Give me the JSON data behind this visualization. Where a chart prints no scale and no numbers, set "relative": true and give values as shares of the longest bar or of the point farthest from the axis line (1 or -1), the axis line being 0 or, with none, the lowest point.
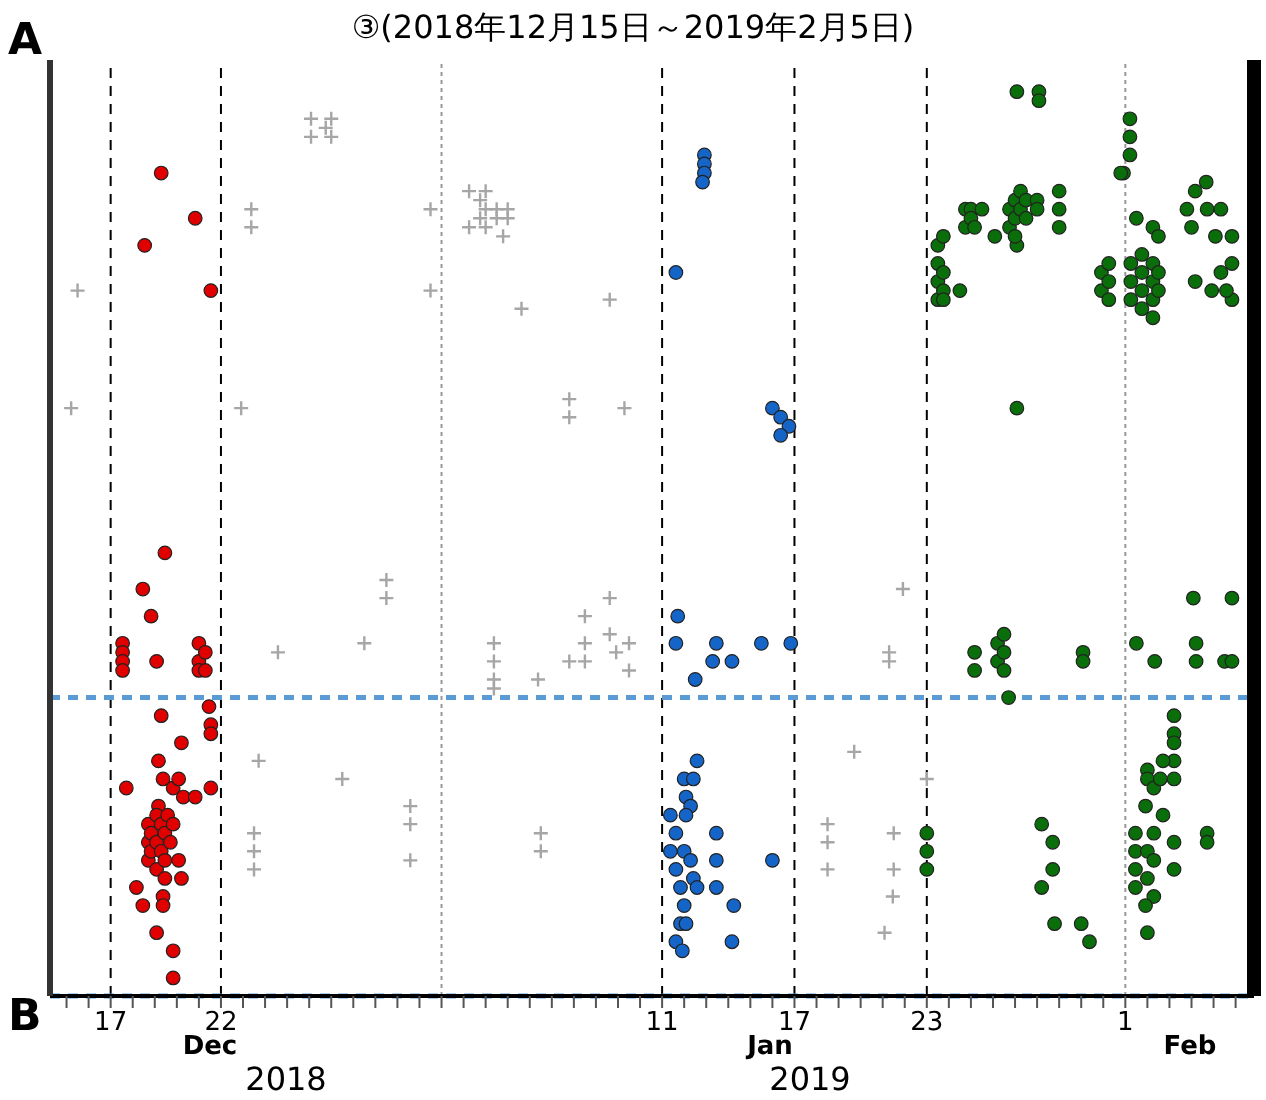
{
  "chart_data": {
    "type": "scatter",
    "title": "③(2018年12月15日～2019年2月5日)",
    "relative": true,
    "marker": "circle",
    "xlim": [
      "2018-12-14T06:00",
      "2019-02-06T20:00"
    ],
    "xticks": [
      {
        "value": "2018-12-15",
        "label": null
      },
      {
        "value": "2018-12-16",
        "label": null
      },
      {
        "value": "2018-12-17",
        "label": "17"
      },
      {
        "value": "2018-12-18",
        "label": null
      },
      {
        "value": "2018-12-19",
        "label": null
      },
      {
        "value": "2018-12-20",
        "label": null
      },
      {
        "value": "2018-12-21",
        "label": null
      },
      {
        "value": "2018-12-22",
        "label": "22"
      },
      {
        "value": "2018-12-23",
        "label": null
      },
      {
        "value": "2018-12-24",
        "label": null
      },
      {
        "value": "2018-12-25",
        "label": null
      },
      {
        "value": "2018-12-26",
        "label": null
      },
      {
        "value": "2018-12-27",
        "label": null
      },
      {
        "value": "2018-12-28",
        "label": null
      },
      {
        "value": "2018-12-29",
        "label": null
      },
      {
        "value": "2018-12-30",
        "label": null
      },
      {
        "value": "2018-12-31",
        "label": null
      },
      {
        "value": "2019-01-01",
        "label": null
      },
      {
        "value": "2019-01-02",
        "label": null
      },
      {
        "value": "2019-01-03",
        "label": null
      },
      {
        "value": "2019-01-04",
        "label": null
      },
      {
        "value": "2019-01-05",
        "label": null
      },
      {
        "value": "2019-01-06",
        "label": null
      },
      {
        "value": "2019-01-07",
        "label": null
      },
      {
        "value": "2019-01-08",
        "label": null
      },
      {
        "value": "2019-01-09",
        "label": null
      },
      {
        "value": "2019-01-10",
        "label": null
      },
      {
        "value": "2019-01-11",
        "label": "11"
      },
      {
        "value": "2019-01-12",
        "label": null
      },
      {
        "value": "2019-01-13",
        "label": null
      },
      {
        "value": "2019-01-14",
        "label": null
      },
      {
        "value": "2019-01-15",
        "label": null
      },
      {
        "value": "2019-01-16",
        "label": null
      },
      {
        "value": "2019-01-17",
        "label": "17"
      },
      {
        "value": "2019-01-18",
        "label": null
      },
      {
        "value": "2019-01-19",
        "label": null
      },
      {
        "value": "2019-01-20",
        "label": null
      },
      {
        "value": "2019-01-21",
        "label": null
      },
      {
        "value": "2019-01-22",
        "label": null
      },
      {
        "value": "2019-01-23",
        "label": "23"
      },
      {
        "value": "2019-01-24",
        "label": null
      },
      {
        "value": "2019-01-25",
        "label": null
      },
      {
        "value": "2019-01-26",
        "label": null
      },
      {
        "value": "2019-01-27",
        "label": null
      },
      {
        "value": "2019-01-28",
        "label": null
      },
      {
        "value": "2019-01-29",
        "label": null
      },
      {
        "value": "2019-01-30",
        "label": null
      },
      {
        "value": "2019-01-31",
        "label": null
      },
      {
        "value": "2019-02-01",
        "label": "1"
      },
      {
        "value": "2019-02-02",
        "label": null
      },
      {
        "value": "2019-02-03",
        "label": null
      },
      {
        "value": "2019-02-04",
        "label": null
      },
      {
        "value": "2019-02-05",
        "label": null
      },
      {
        "value": "2019-02-06",
        "label": null
      }
    ],
    "annotations": [
      "A",
      "B",
      "Dec",
      "Jan",
      "Feb",
      "2018",
      "2019"
    ],
    "ref_lines": [
      {
        "axis": "x",
        "value": "2018-12-17",
        "color": "#000000",
        "line_style": "dashed"
      },
      {
        "axis": "x",
        "value": "2018-12-22",
        "color": "#000000",
        "line_style": "dashed"
      },
      {
        "axis": "x",
        "value": "2019-01-01",
        "color": "#999999",
        "line_style": "dotted"
      },
      {
        "axis": "x",
        "value": "2019-01-11",
        "color": "#000000",
        "line_style": "dashed"
      },
      {
        "axis": "x",
        "value": "2019-01-17",
        "color": "#000000",
        "line_style": "dashed"
      },
      {
        "axis": "x",
        "value": "2019-01-23",
        "color": "#000000",
        "line_style": "dashed"
      },
      {
        "axis": "x",
        "value": "2019-02-01",
        "color": "#999999",
        "line_style": "dotted"
      },
      {
        "axis": "y",
        "value": 0.33,
        "color": "#5b9bd5",
        "line_style": "dashed"
      },
      {
        "axis": "y",
        "value": 0,
        "color": "#5b9bd5",
        "line_style": "dashed"
      }
    ],
    "series": [
      {
        "color": "#a6a6a6",
        "marker": "cross",
        "x": [
          "2018-12-15T12:00",
          "2018-12-15T05:00",
          "2018-12-22T22:00",
          "2018-12-23T09:00",
          "2018-12-23T09:00",
          "2018-12-26T02:00",
          "2018-12-26T02:00",
          "2018-12-26T18:00",
          "2018-12-27T00:00",
          "2018-12-27T00:00",
          "2018-12-31T12:00",
          "2018-12-31T12:00",
          "2019-01-02T06:00",
          "2019-01-02T06:00",
          "2019-01-02T18:00",
          "2019-01-02T18:00",
          "2019-01-03T00:00",
          "2019-01-03T00:00",
          "2019-01-03T00:00",
          "2019-01-03T12:00",
          "2019-01-03T12:00",
          "2019-01-04T00:00",
          "2019-01-04T00:00",
          "2019-01-03T19:00",
          "2019-01-04T15:00",
          "2019-01-08T15:00",
          "2019-01-06T19:00",
          "2019-01-06T19:00",
          "2019-01-09T07:00",
          "2018-12-29T12:00",
          "2018-12-29T12:00",
          "2018-12-24T14:00",
          "2018-12-28T12:00",
          "2019-01-03T09:00",
          "2019-01-03T09:00",
          "2019-01-03T09:00",
          "2019-01-03T09:00",
          "2019-01-05T09:00",
          "2019-01-06T19:00",
          "2019-01-07T12:00",
          "2019-01-07T12:00",
          "2019-01-08T15:00",
          "2019-01-07T12:00",
          "2019-01-08T15:00",
          "2019-01-09T12:00",
          "2019-01-09T12:00",
          "2019-01-08T22:00",
          "2018-12-23T17:00",
          "2018-12-27T12:00",
          "2018-12-23T12:00",
          "2018-12-23T12:00",
          "2018-12-23T12:00",
          "2018-12-30T14:00",
          "2018-12-30T14:00",
          "2018-12-30T14:00",
          "2019-01-05T12:00",
          "2019-01-05T12:00",
          "2019-01-21T22:00",
          "2019-01-21T07:00",
          "2019-01-21T07:00",
          "2019-01-19T17:00",
          "2019-01-23T00:00",
          "2019-01-18T12:00",
          "2019-01-18T12:00",
          "2019-01-18T12:00",
          "2019-01-21T12:00",
          "2019-01-21T12:00",
          "2019-01-21T11:00",
          "2019-01-21T02:00"
        ],
        "values": [
          0.78,
          0.65,
          0.65,
          0.87,
          0.85,
          0.97,
          0.95,
          0.96,
          0.97,
          0.95,
          0.87,
          0.78,
          0.89,
          0.85,
          0.88,
          0.86,
          0.89,
          0.87,
          0.85,
          0.87,
          0.86,
          0.87,
          0.86,
          0.84,
          0.76,
          0.77,
          0.66,
          0.64,
          0.65,
          0.46,
          0.44,
          0.38,
          0.39,
          0.39,
          0.37,
          0.35,
          0.34,
          0.35,
          0.37,
          0.39,
          0.37,
          0.44,
          0.42,
          0.4,
          0.39,
          0.36,
          0.38,
          0.26,
          0.24,
          0.18,
          0.16,
          0.14,
          0.21,
          0.19,
          0.15,
          0.18,
          0.16,
          0.45,
          0.38,
          0.37,
          0.27,
          0.24,
          0.19,
          0.17,
          0.14,
          0.18,
          0.14,
          0.11,
          0.07
        ]
      },
      {
        "color": "#e00000",
        "x": [
          "2018-12-19T07:00",
          "2018-12-20T20:00",
          "2018-12-18T13:00",
          "2018-12-21T13:00",
          "2018-12-19T11:00",
          "2018-12-18T11:00",
          "2018-12-18T20:00",
          "2018-12-19T02:00",
          "2018-12-17T13:00",
          "2018-12-17T13:00",
          "2018-12-17T13:00",
          "2018-12-17T13:00",
          "2018-12-21T00:00",
          "2018-12-21T00:00",
          "2018-12-21T00:00",
          "2018-12-21T07:00",
          "2018-12-21T07:00",
          "2018-12-19T07:00",
          "2018-12-21T11:00",
          "2018-12-21T13:00",
          "2018-12-21T13:00",
          "2018-12-20T05:00",
          "2018-12-19T04:00",
          "2018-12-17T17:00",
          "2018-12-19T09:00",
          "2018-12-19T20:00",
          "2018-12-20T02:00",
          "2018-12-20T07:00",
          "2018-12-20T20:00",
          "2018-12-21T13:00",
          "2018-12-19T04:00",
          "2018-12-18T17:00",
          "2018-12-18T17:00",
          "2018-12-18T17:00",
          "2018-12-18T20:00",
          "2018-12-18T20:00",
          "2018-12-19T02:00",
          "2018-12-19T02:00",
          "2018-12-19T02:00",
          "2018-12-19T07:00",
          "2018-12-19T07:00",
          "2018-12-19T11:00",
          "2018-12-19T11:00",
          "2018-12-19T11:00",
          "2018-12-19T14:00",
          "2018-12-19T17:00",
          "2018-12-19T20:00",
          "2018-12-20T02:00",
          "2018-12-20T05:00",
          "2018-12-18T04:00",
          "2018-12-18T11:00",
          "2018-12-19T09:00",
          "2018-12-19T09:00",
          "2018-12-19T02:00",
          "2018-12-19T20:00",
          "2018-12-19T20:00"
        ],
        "values": [
          0.91,
          0.86,
          0.83,
          0.78,
          0.49,
          0.45,
          0.42,
          0.37,
          0.39,
          0.38,
          0.37,
          0.36,
          0.39,
          0.37,
          0.36,
          0.38,
          0.36,
          0.31,
          0.32,
          0.3,
          0.29,
          0.28,
          0.26,
          0.23,
          0.24,
          0.23,
          0.24,
          0.22,
          0.22,
          0.23,
          0.21,
          0.19,
          0.17,
          0.15,
          0.18,
          0.16,
          0.2,
          0.17,
          0.14,
          0.19,
          0.16,
          0.18,
          0.15,
          0.13,
          0.2,
          0.17,
          0.19,
          0.15,
          0.13,
          0.12,
          0.1,
          0.11,
          0.1,
          0.07,
          0.05,
          0.02
        ]
      },
      {
        "color": "#1565c8",
        "x": [
          "2019-01-12T22:00",
          "2019-01-12T22:00",
          "2019-01-12T22:00",
          "2019-01-12T20:00",
          "2019-01-11T15:00",
          "2019-01-16T00:00",
          "2019-01-16T09:00",
          "2019-01-16T18:00",
          "2019-01-16T09:00",
          "2019-01-11T17:00",
          "2019-01-11T15:00",
          "2019-01-12T12:00",
          "2019-01-13T07:00",
          "2019-01-13T11:00",
          "2019-01-14T04:00",
          "2019-01-15T12:00",
          "2019-01-16T20:00",
          "2019-01-12T14:00",
          "2019-01-12T00:00",
          "2019-01-12T10:00",
          "2019-01-12T02:00",
          "2019-01-12T07:00",
          "2019-01-11T09:00",
          "2019-01-12T02:00",
          "2019-01-11T15:00",
          "2019-01-12T00:00",
          "2019-01-11T09:00",
          "2019-01-12T07:00",
          "2019-01-11T15:00",
          "2019-01-12T10:00",
          "2019-01-11T20:00",
          "2019-01-12T14:00",
          "2019-01-12T00:00",
          "2019-01-11T20:00",
          "2019-01-12T02:00",
          "2019-01-11T15:00",
          "2019-01-11T22:00",
          "2019-01-13T11:00",
          "2019-01-13T11:00",
          "2019-01-13T11:00",
          "2019-01-14T06:00",
          "2019-01-14T04:00",
          "2019-01-16T00:00"
        ],
        "values": [
          0.93,
          0.92,
          0.91,
          0.9,
          0.8,
          0.65,
          0.64,
          0.63,
          0.62,
          0.42,
          0.39,
          0.35,
          0.37,
          0.39,
          0.37,
          0.39,
          0.39,
          0.26,
          0.24,
          0.24,
          0.22,
          0.21,
          0.2,
          0.2,
          0.18,
          0.16,
          0.16,
          0.15,
          0.14,
          0.13,
          0.12,
          0.12,
          0.1,
          0.08,
          0.08,
          0.06,
          0.05,
          0.18,
          0.15,
          0.12,
          0.1,
          0.06,
          0.15
        ]
      },
      {
        "color": "#0a6e0a",
        "x": [
          "2019-01-27T02:00",
          "2019-01-28T02:00",
          "2019-01-28T02:00",
          "2019-02-01T05:00",
          "2019-02-01T05:00",
          "2019-02-01T05:00",
          "2019-01-31T22:00",
          "2019-01-31T19:00",
          "2019-01-23T12:00",
          "2019-01-23T12:00",
          "2019-01-23T12:00",
          "2019-01-23T12:00",
          "2019-01-23T18:00",
          "2019-01-23T18:00",
          "2019-01-23T18:00",
          "2019-01-23T18:00",
          "2019-01-24T12:00",
          "2019-01-24T18:00",
          "2019-01-24T18:00",
          "2019-01-25T00:00",
          "2019-01-25T00:00",
          "2019-01-25T12:00",
          "2019-01-25T04:00",
          "2019-01-26T02:00",
          "2019-01-27T02:00",
          "2019-01-26T18:00",
          "2019-01-26T18:00",
          "2019-01-27T00:00",
          "2019-01-27T00:00",
          "2019-01-27T00:00",
          "2019-01-27T06:00",
          "2019-01-27T06:00",
          "2019-01-27T12:00",
          "2019-01-27T12:00",
          "2019-01-28T00:00",
          "2019-01-28T00:00",
          "2019-01-29T00:00",
          "2019-01-29T00:00",
          "2019-01-29T00:00",
          "2019-02-01T12:00",
          "2019-02-02T06:00",
          "2019-02-02T12:00",
          "2019-01-30T22:00",
          "2019-01-30T22:00",
          "2019-01-31T06:00",
          "2019-01-31T06:00",
          "2019-01-31T06:00",
          "2019-02-01T06:00",
          "2019-02-01T06:00",
          "2019-02-01T06:00",
          "2019-02-01T18:00",
          "2019-02-01T18:00",
          "2019-02-01T18:00",
          "2019-02-01T18:00",
          "2019-02-02T06:00",
          "2019-02-02T06:00",
          "2019-02-02T06:00",
          "2019-02-02T06:00",
          "2019-02-02T12:00",
          "2019-02-02T12:00",
          "2019-02-04T16:00",
          "2019-02-04T04:00",
          "2019-02-03T19:00",
          "2019-02-04T17:00",
          "2019-02-05T08:00",
          "2019-02-05T02:00",
          "2019-02-05T20:00",
          "2019-02-05T20:00",
          "2019-02-05T08:00",
          "2019-02-04T22:00",
          "2019-02-05T20:00",
          "2019-02-04T04:00",
          "2019-02-04T00:00",
          "2019-02-05T14:00",
          "2019-01-27T02:00",
          "2019-01-25T04:00",
          "2019-01-25T04:00",
          "2019-01-26T05:00",
          "2019-01-26T05:00",
          "2019-01-26T12:00",
          "2019-01-26T12:00",
          "2019-01-26T12:00",
          "2019-01-26T17:00",
          "2019-01-30T02:00",
          "2019-01-30T02:00",
          "2019-02-01T12:00",
          "2019-02-02T08:00",
          "2019-02-04T02:00",
          "2019-02-05T20:00",
          "2019-02-04T05:00",
          "2019-02-04T05:00",
          "2019-02-05T12:00",
          "2019-02-05T20:00",
          "2019-01-23T00:00",
          "2019-01-23T00:00",
          "2019-01-23T00:00",
          "2019-01-28T05:00",
          "2019-01-28T17:00",
          "2019-01-28T17:00",
          "2019-01-28T05:00",
          "2019-01-28T19:00",
          "2019-01-30T00:00",
          "2019-01-30T09:00",
          "2019-02-03T05:00",
          "2019-02-03T05:00",
          "2019-02-03T05:00",
          "2019-02-03T05:00",
          "2019-02-03T05:00",
          "2019-02-02T17:00",
          "2019-02-02T00:00",
          "2019-02-02T00:00",
          "2019-02-02T07:00",
          "2019-02-02T14:00",
          "2019-02-01T22:00",
          "2019-02-02T17:00",
          "2019-02-01T11:00",
          "2019-02-02T07:00",
          "2019-02-03T05:00",
          "2019-02-03T05:00",
          "2019-02-01T11:00",
          "2019-02-01T11:00",
          "2019-02-01T11:00",
          "2019-02-02T00:00",
          "2019-02-02T00:00",
          "2019-02-02T07:00",
          "2019-02-02T07:00",
          "2019-02-01T22:00",
          "2019-02-02T00:00",
          "2019-02-04T17:00",
          "2019-02-04T17:00"
        ],
        "values": [
          1.0,
          1.0,
          0.99,
          0.97,
          0.95,
          0.93,
          0.91,
          0.91,
          0.83,
          0.81,
          0.79,
          0.77,
          0.84,
          0.8,
          0.78,
          0.77,
          0.78,
          0.87,
          0.85,
          0.87,
          0.86,
          0.87,
          0.85,
          0.84,
          0.83,
          0.87,
          0.85,
          0.88,
          0.86,
          0.84,
          0.89,
          0.87,
          0.88,
          0.86,
          0.88,
          0.87,
          0.89,
          0.87,
          0.85,
          0.86,
          0.85,
          0.84,
          0.8,
          0.78,
          0.81,
          0.79,
          0.77,
          0.81,
          0.79,
          0.77,
          0.82,
          0.8,
          0.78,
          0.76,
          0.81,
          0.79,
          0.77,
          0.75,
          0.8,
          0.78,
          0.9,
          0.89,
          0.87,
          0.87,
          0.87,
          0.84,
          0.84,
          0.81,
          0.8,
          0.78,
          0.77,
          0.79,
          0.85,
          0.78,
          0.65,
          0.38,
          0.36,
          0.39,
          0.37,
          0.4,
          0.38,
          0.36,
          0.33,
          0.38,
          0.37,
          0.39,
          0.37,
          0.44,
          0.44,
          0.39,
          0.37,
          0.37,
          0.37,
          0.18,
          0.16,
          0.14,
          0.19,
          0.17,
          0.14,
          0.12,
          0.08,
          0.08,
          0.06,
          0.31,
          0.29,
          0.28,
          0.26,
          0.24,
          0.26,
          0.25,
          0.24,
          0.23,
          0.24,
          0.21,
          0.2,
          0.18,
          0.18,
          0.17,
          0.14,
          0.16,
          0.14,
          0.12,
          0.16,
          0.13,
          0.15,
          0.11,
          0.1,
          0.07,
          0.18,
          0.17
        ]
      }
    ]
  }
}
